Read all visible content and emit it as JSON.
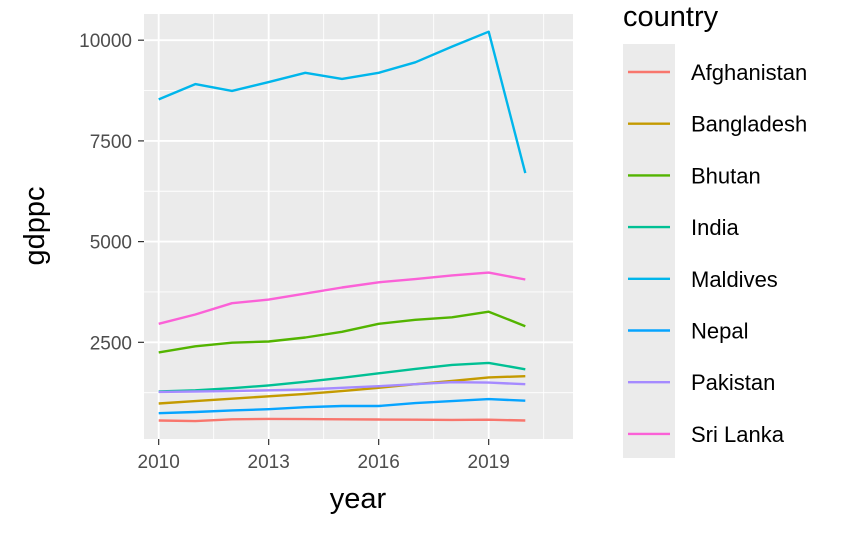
{
  "chart_data": {
    "type": "line",
    "xlabel": "year",
    "ylabel": "gdppc",
    "xlim": [
      2009.6,
      2021.3
    ],
    "ylim": [
      100,
      10650
    ],
    "x_ticks": [
      2010,
      2013,
      2016,
      2019
    ],
    "y_ticks": [
      2500,
      5000,
      7500,
      10000
    ],
    "y_tick_labels": [
      "2500",
      "5000",
      "7500",
      "10000"
    ],
    "x_minor_breaks": [
      2011.5,
      2014.5,
      2017.5,
      2020.5
    ],
    "y_minor_breaks": [
      1250,
      3750,
      6250,
      8750
    ],
    "grid": true,
    "legend_title": "country",
    "legend_position": "right",
    "x": [
      2010,
      2011,
      2012,
      2013,
      2014,
      2015,
      2016,
      2017,
      2018,
      2019,
      2020
    ],
    "series": [
      {
        "name": "Afghanistan",
        "color": "#F8766D",
        "values": [
          560,
          545,
          590,
          600,
          595,
          590,
          585,
          580,
          575,
          580,
          560
        ]
      },
      {
        "name": "Bangladesh",
        "color": "#C49A00",
        "values": [
          980,
          1040,
          1100,
          1160,
          1220,
          1290,
          1370,
          1460,
          1540,
          1630,
          1660
        ]
      },
      {
        "name": "Bhutan",
        "color": "#53B400",
        "values": [
          2250,
          2400,
          2490,
          2520,
          2620,
          2760,
          2960,
          3060,
          3120,
          3260,
          2900
        ]
      },
      {
        "name": "India",
        "color": "#00C094",
        "values": [
          1280,
          1310,
          1360,
          1430,
          1520,
          1620,
          1730,
          1840,
          1940,
          1990,
          1830
        ]
      },
      {
        "name": "Maldives",
        "color": "#00B6EB",
        "values": [
          8530,
          8910,
          8740,
          8960,
          9190,
          9040,
          9190,
          9450,
          9840,
          10210,
          6700
        ]
      },
      {
        "name": "Nepal",
        "color": "#06A4FF",
        "values": [
          740,
          770,
          810,
          840,
          890,
          920,
          920,
          990,
          1040,
          1090,
          1050
        ]
      },
      {
        "name": "Pakistan",
        "color": "#A58AFF",
        "values": [
          1270,
          1280,
          1290,
          1310,
          1330,
          1370,
          1410,
          1460,
          1510,
          1500,
          1460
        ]
      },
      {
        "name": "Sri Lanka",
        "color": "#FB61D7",
        "values": [
          2960,
          3190,
          3470,
          3560,
          3710,
          3860,
          3990,
          4070,
          4160,
          4230,
          4060
        ]
      }
    ]
  },
  "colors": {
    "panel_bg": "#EBEBEB",
    "grid_major": "#FFFFFF",
    "tick_text": "#4D4D4D",
    "tick_mark": "#333333"
  }
}
